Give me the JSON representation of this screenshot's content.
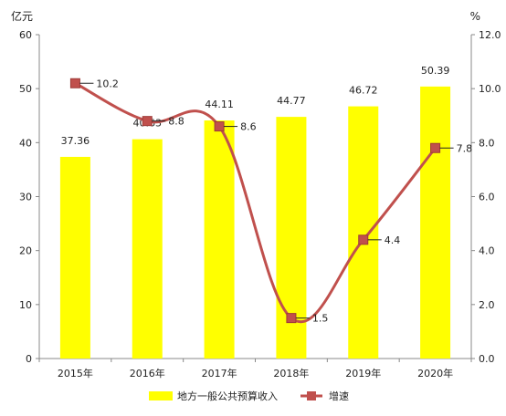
{
  "chart_data": {
    "type": "bar",
    "title": "",
    "categories": [
      "2015年",
      "2016年",
      "2017年",
      "2018年",
      "2019年",
      "2020年"
    ],
    "series": [
      {
        "name": "地方一般公共预算收入",
        "type": "bar",
        "axis": "left",
        "values": [
          37.36,
          40.63,
          44.11,
          44.77,
          46.72,
          50.39
        ],
        "labels": [
          "37.36",
          "40.63",
          "44.11",
          "44.77",
          "46.72",
          "50.39"
        ],
        "color": "#ffff00"
      },
      {
        "name": "增速",
        "type": "line",
        "axis": "right",
        "values": [
          10.2,
          8.8,
          8.6,
          1.5,
          4.4,
          7.8
        ],
        "labels": [
          "10.2",
          "8.8",
          "8.6",
          "1.5",
          "4.4",
          "7.8"
        ],
        "color": "#c0504d"
      }
    ],
    "left_axis": {
      "unit": "亿元",
      "ylim": [
        0,
        60
      ],
      "ticks": [
        "0",
        "10",
        "20",
        "30",
        "40",
        "50",
        "60"
      ]
    },
    "right_axis": {
      "unit": "%",
      "ylim": [
        0,
        12
      ],
      "ticks": [
        "0.0",
        "2.0",
        "4.0",
        "6.0",
        "8.0",
        "10.0",
        "12.0"
      ]
    },
    "grid": false,
    "legend": "bottom"
  }
}
